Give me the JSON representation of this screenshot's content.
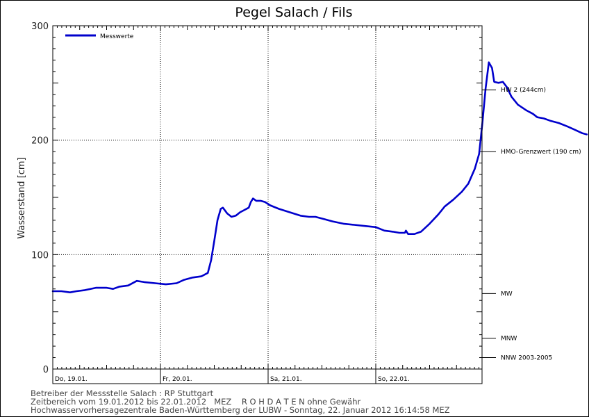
{
  "chart_data": {
    "type": "line",
    "title": "Pegel Salach / Fils",
    "ylabel": "Wasserstand [cm]",
    "xlabel": "",
    "ylim": [
      0,
      300
    ],
    "yticks": [
      0,
      100,
      200,
      300
    ],
    "xlim_days": [
      0,
      4
    ],
    "day_labels": [
      "Do, 19.01.",
      "Fr, 20.01.",
      "Sa, 21.01.",
      "So, 22.01."
    ],
    "grid": true,
    "legend": "top-left",
    "series": [
      {
        "name": "Messwerte",
        "color": "#0000cc",
        "points": [
          [
            0.0,
            68
          ],
          [
            0.08,
            68
          ],
          [
            0.16,
            67
          ],
          [
            0.22,
            68
          ],
          [
            0.3,
            69
          ],
          [
            0.4,
            71
          ],
          [
            0.5,
            71
          ],
          [
            0.56,
            70
          ],
          [
            0.62,
            72
          ],
          [
            0.7,
            73
          ],
          [
            0.78,
            77
          ],
          [
            0.85,
            76
          ],
          [
            0.95,
            75
          ],
          [
            1.05,
            74
          ],
          [
            1.15,
            75
          ],
          [
            1.22,
            78
          ],
          [
            1.3,
            80
          ],
          [
            1.38,
            81
          ],
          [
            1.44,
            84
          ],
          [
            1.47,
            95
          ],
          [
            1.5,
            112
          ],
          [
            1.53,
            130
          ],
          [
            1.56,
            140
          ],
          [
            1.58,
            141
          ],
          [
            1.62,
            136
          ],
          [
            1.66,
            133
          ],
          [
            1.7,
            134
          ],
          [
            1.74,
            137
          ],
          [
            1.78,
            139
          ],
          [
            1.82,
            141
          ],
          [
            1.84,
            146
          ],
          [
            1.86,
            149
          ],
          [
            1.89,
            147
          ],
          [
            1.93,
            147
          ],
          [
            1.97,
            146
          ],
          [
            2.02,
            143
          ],
          [
            2.1,
            140
          ],
          [
            2.2,
            137
          ],
          [
            2.3,
            134
          ],
          [
            2.38,
            133
          ],
          [
            2.44,
            133
          ],
          [
            2.52,
            131
          ],
          [
            2.6,
            129
          ],
          [
            2.7,
            127
          ],
          [
            2.8,
            126
          ],
          [
            2.9,
            125
          ],
          [
            3.0,
            124
          ],
          [
            3.08,
            121
          ],
          [
            3.16,
            120
          ],
          [
            3.22,
            119
          ],
          [
            3.27,
            119
          ],
          [
            3.28,
            121
          ],
          [
            3.3,
            118
          ],
          [
            3.36,
            118
          ],
          [
            3.42,
            120
          ],
          [
            3.5,
            127
          ],
          [
            3.58,
            135
          ],
          [
            3.64,
            142
          ],
          [
            3.72,
            148
          ],
          [
            3.8,
            155
          ],
          [
            3.86,
            162
          ],
          [
            3.92,
            175
          ],
          [
            3.96,
            188
          ],
          [
            3.99,
            215
          ],
          [
            4.02,
            245
          ],
          [
            4.05,
            268
          ],
          [
            4.08,
            263
          ],
          [
            4.1,
            251
          ],
          [
            4.14,
            250
          ],
          [
            4.18,
            251
          ],
          [
            4.22,
            246
          ],
          [
            4.26,
            238
          ],
          [
            4.32,
            231
          ],
          [
            4.4,
            226
          ],
          [
            4.46,
            223
          ],
          [
            4.5,
            220
          ],
          [
            4.56,
            219
          ],
          [
            4.62,
            217
          ],
          [
            4.7,
            215
          ],
          [
            4.78,
            212
          ],
          [
            4.85,
            209
          ],
          [
            4.92,
            206
          ],
          [
            4.96,
            205
          ]
        ]
      }
    ],
    "thresholds": [
      {
        "label": "HW 2 (244cm)",
        "value": 244
      },
      {
        "label": "HMO-Grenzwert (190 cm)",
        "value": 190
      },
      {
        "label": "MW",
        "value": 66
      },
      {
        "label": "MNW",
        "value": 27
      },
      {
        "label": "NNW 2003-2005",
        "value": 10
      }
    ]
  },
  "footer": {
    "line1": "Betreiber der Messstelle Salach : RP Stuttgart",
    "line2": "Zeitbereich vom 19.01.2012 bis 22.01.2012   MEZ    R O H D A T E N ohne Gewähr",
    "line3": "Hochwasservorhersagezentrale Baden-Württemberg der LUBW - Sonntag, 22. Januar 2012 16:14:58 MEZ"
  }
}
